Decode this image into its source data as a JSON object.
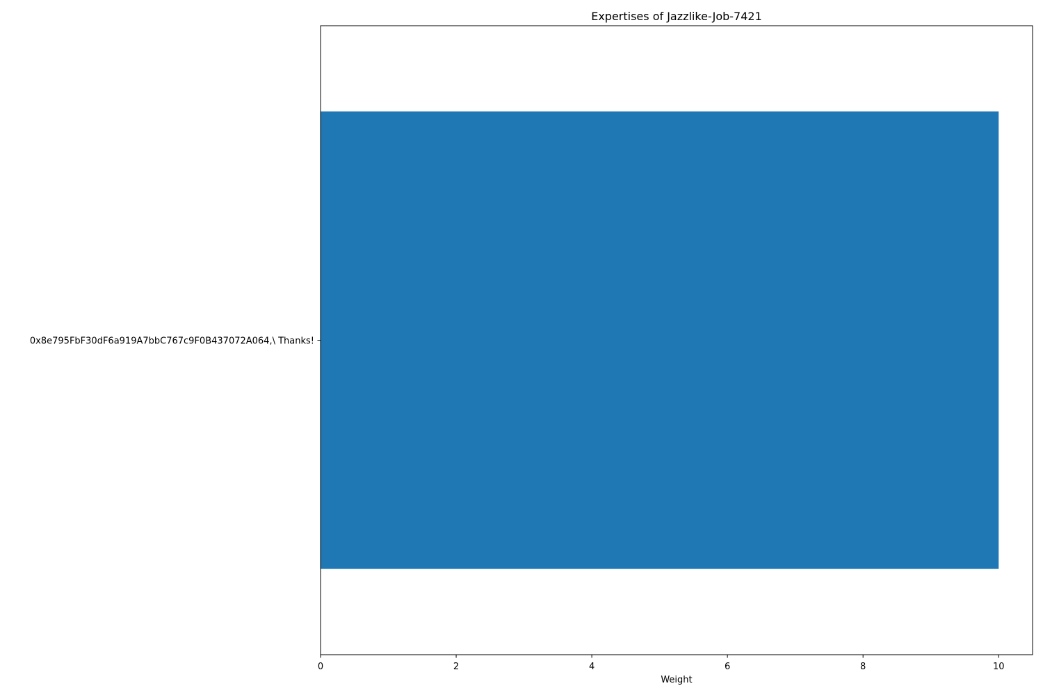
{
  "chart_data": {
    "type": "bar",
    "orientation": "horizontal",
    "title": "Expertises of Jazzlike-Job-7421",
    "xlabel": "Weight",
    "ylabel": "",
    "categories": [
      "0x8e795FbF30dF6a919A7bbC767c9F0B437072A064,\\ Thanks!"
    ],
    "values": [
      10
    ],
    "xlim": [
      0,
      10.5
    ],
    "xticks": [
      0,
      2,
      4,
      6,
      8,
      10
    ],
    "xtick_labels": [
      "0",
      "2",
      "4",
      "6",
      "8",
      "10"
    ],
    "grid": false,
    "legend": "none",
    "bar_color": "#1f77b4"
  }
}
